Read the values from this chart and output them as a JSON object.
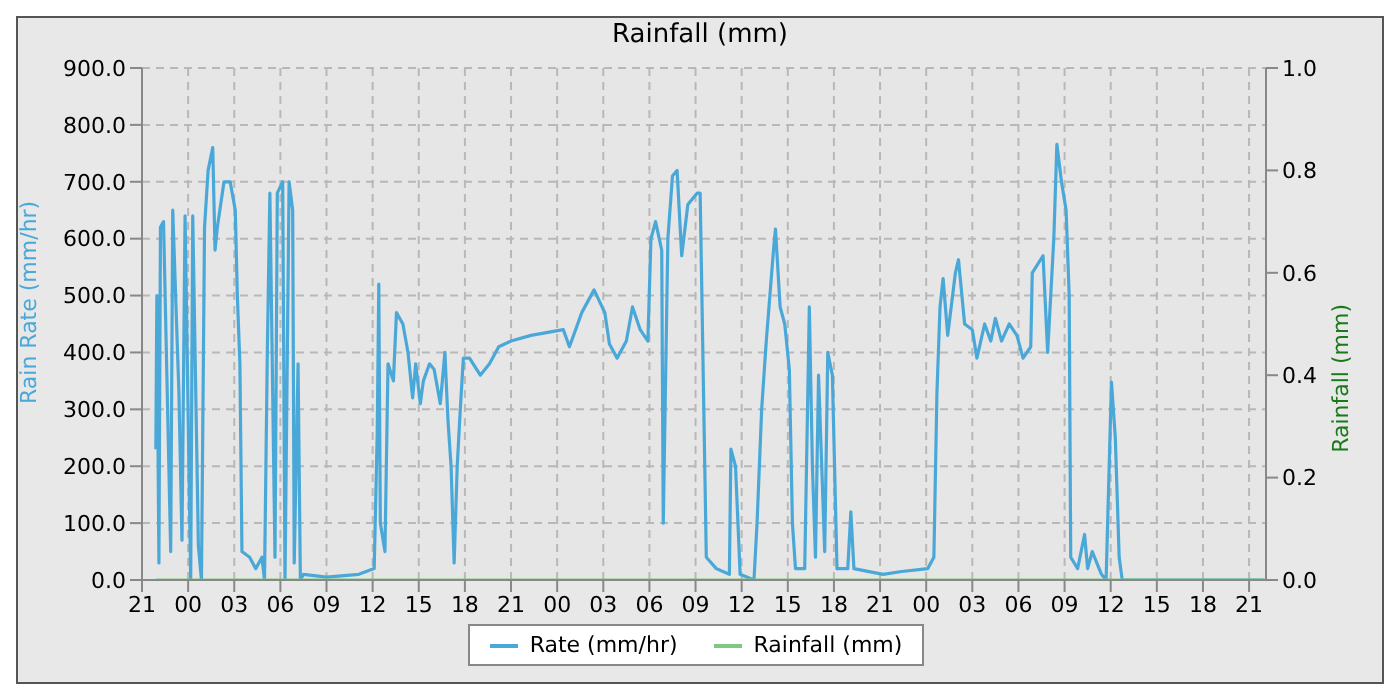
{
  "chart_data": {
    "type": "line",
    "title": "Rainfall (mm)",
    "ylabel": "Rain Rate (mm/hr)",
    "y2label": "Rainfall (mm)",
    "xlim": [
      "--01-01T21:00",
      "--01-04T22:06"
    ],
    "xticks": [
      {
        "value": "--01-01T21:00",
        "label": "21"
      },
      {
        "value": "--01-02T00:00",
        "label": "00"
      },
      {
        "value": "--01-02T03:00",
        "label": "03"
      },
      {
        "value": "--01-02T06:00",
        "label": "06"
      },
      {
        "value": "--01-02T09:00",
        "label": "09"
      },
      {
        "value": "--01-02T12:00",
        "label": "12"
      },
      {
        "value": "--01-02T15:00",
        "label": "15"
      },
      {
        "value": "--01-02T18:00",
        "label": "18"
      },
      {
        "value": "--01-02T21:00",
        "label": "21"
      },
      {
        "value": "--01-03T00:00",
        "label": "00"
      },
      {
        "value": "--01-03T03:00",
        "label": "03"
      },
      {
        "value": "--01-03T06:00",
        "label": "06"
      },
      {
        "value": "--01-03T09:00",
        "label": "09"
      },
      {
        "value": "--01-03T12:00",
        "label": "12"
      },
      {
        "value": "--01-03T15:00",
        "label": "15"
      },
      {
        "value": "--01-03T18:00",
        "label": "18"
      },
      {
        "value": "--01-03T21:00",
        "label": "21"
      },
      {
        "value": "--01-04T00:00",
        "label": "00"
      },
      {
        "value": "--01-04T03:00",
        "label": "03"
      },
      {
        "value": "--01-04T06:00",
        "label": "06"
      },
      {
        "value": "--01-04T09:00",
        "label": "09"
      },
      {
        "value": "--01-04T12:00",
        "label": "12"
      },
      {
        "value": "--01-04T15:00",
        "label": "15"
      },
      {
        "value": "--01-04T18:00",
        "label": "18"
      },
      {
        "value": "--01-04T21:00",
        "label": "21"
      }
    ],
    "ylim": [
      0,
      900
    ],
    "yticks": [
      {
        "value": 0,
        "label": "0.0"
      },
      {
        "value": 100,
        "label": "100.0"
      },
      {
        "value": 200,
        "label": "200.0"
      },
      {
        "value": 300,
        "label": "300.0"
      },
      {
        "value": 400,
        "label": "400.0"
      },
      {
        "value": 500,
        "label": "500.0"
      },
      {
        "value": 600,
        "label": "600.0"
      },
      {
        "value": 700,
        "label": "700.0"
      },
      {
        "value": 800,
        "label": "800.0"
      },
      {
        "value": 900,
        "label": "900.0"
      }
    ],
    "y2lim": [
      0,
      1
    ],
    "y2ticks": [
      {
        "value": 0,
        "label": "0.0"
      },
      {
        "value": 0.2,
        "label": "0.2"
      },
      {
        "value": 0.4,
        "label": "0.4"
      },
      {
        "value": 0.6,
        "label": "0.6"
      },
      {
        "value": 0.8,
        "label": "0.8"
      },
      {
        "value": 1,
        "label": "1.0"
      }
    ],
    "grid": true,
    "legend": "bottom",
    "series": [
      {
        "name": "Rate (mm/hr)",
        "color": "#4aa8d8",
        "x": [
          "--01-01T21:54",
          "--01-01T21:58",
          "--01-01T22:06",
          "--01-01T22:12",
          "--01-01T22:24",
          "--01-01T22:52",
          "--01-01T23:00",
          "--01-01T23:24",
          "--01-01T23:36",
          "--01-01T23:48",
          "--01-02T00:10",
          "--01-02T00:18",
          "--01-02T00:40",
          "--01-02T00:52",
          "--01-02T01:04",
          "--01-02T01:18",
          "--01-02T01:36",
          "--01-02T01:45",
          "--01-02T01:54",
          "--01-02T02:20",
          "--01-02T02:44",
          "--01-02T03:04",
          "--01-02T03:12",
          "--01-02T03:22",
          "--01-02T03:30",
          "--01-02T04:00",
          "--01-02T04:24",
          "--01-02T04:48",
          "--01-02T04:58",
          "--01-02T05:09",
          "--01-02T05:19",
          "--01-02T05:39",
          "--01-02T05:48",
          "--01-02T06:09",
          "--01-02T06:18",
          "--01-02T06:34",
          "--01-02T06:48",
          "--01-02T06:54",
          "--01-02T07:09",
          "--01-02T07:18",
          "--01-02T07:30",
          "--01-02T09:00",
          "--01-02T11:06",
          "--01-02T12:06",
          "--01-02T12:18",
          "--01-02T12:24",
          "--01-02T12:30",
          "--01-02T12:48",
          "--01-02T13:00",
          "--01-02T13:21",
          "--01-02T13:33",
          "--01-02T13:58",
          "--01-02T14:18",
          "--01-02T14:36",
          "--01-02T14:48",
          "--01-02T15:06",
          "--01-02T15:18",
          "--01-02T15:42",
          "--01-02T16:00",
          "--01-02T16:24",
          "--01-02T16:42",
          "--01-02T16:54",
          "--01-02T17:06",
          "--01-02T17:18",
          "--01-02T17:30",
          "--01-02T17:42",
          "--01-02T17:54",
          "--01-02T18:18",
          "--01-02T19:00",
          "--01-02T19:36",
          "--01-02T20:12",
          "--01-02T21:00",
          "--01-02T22:18",
          "--01-03T00:24",
          "--01-03T00:48",
          "--01-03T01:36",
          "--01-03T02:24",
          "--01-03T03:06",
          "--01-03T03:24",
          "--01-03T03:54",
          "--01-03T04:30",
          "--01-03T04:54",
          "--01-03T05:24",
          "--01-03T05:54",
          "--01-03T06:06",
          "--01-03T06:24",
          "--01-03T06:48",
          "--01-03T06:54",
          "--01-03T07:12",
          "--01-03T07:30",
          "--01-03T07:48",
          "--01-03T08:06",
          "--01-03T08:30",
          "--01-03T09:06",
          "--01-03T09:18",
          "--01-03T09:36",
          "--01-03T09:42",
          "--01-03T10:21",
          "--01-03T11:12",
          "--01-03T11:18",
          "--01-03T11:36",
          "--01-03T11:54",
          "--01-03T12:48",
          "--01-03T13:00",
          "--01-03T13:18",
          "--01-03T13:36",
          "--01-03T14:06",
          "--01-03T14:12",
          "--01-03T14:30",
          "--01-03T14:48",
          "--01-03T15:06",
          "--01-03T15:18",
          "--01-03T15:30",
          "--01-03T16:06",
          "--01-03T16:24",
          "--01-03T16:36",
          "--01-03T16:48",
          "--01-03T17:00",
          "--01-03T17:24",
          "--01-03T17:36",
          "--01-03T17:54",
          "--01-03T18:12",
          "--01-03T18:54",
          "--01-03T19:06",
          "--01-03T19:18",
          "--01-03T21:12",
          "--01-03T22:24",
          "--01-04T00:06",
          "--01-04T00:30",
          "--01-04T00:42",
          "--01-04T00:54",
          "--01-04T01:06",
          "--01-04T01:24",
          "--01-04T01:54",
          "--01-04T02:06",
          "--01-04T02:30",
          "--01-04T03:00",
          "--01-04T03:18",
          "--01-04T03:48",
          "--01-04T04:12",
          "--01-04T04:30",
          "--01-04T04:54",
          "--01-04T05:24",
          "--01-04T05:54",
          "--01-04T06:18",
          "--01-04T06:48",
          "--01-04T06:54",
          "--01-04T07:36",
          "--01-04T07:54",
          "--01-04T08:18",
          "--01-04T08:30",
          "--01-04T08:48",
          "--01-04T09:06",
          "--01-04T09:18",
          "--01-04T09:24",
          "--01-04T09:51",
          "--01-04T10:18",
          "--01-04T10:30",
          "--01-04T10:48",
          "--01-04T11:24",
          "--01-04T11:42",
          "--01-04T12:03",
          "--01-04T12:18",
          "--01-04T12:33",
          "--01-04T12:45",
          "--01-04T22:00"
        ],
        "values": [
          230,
          500,
          30,
          620,
          630,
          50,
          650,
          330,
          70,
          640,
          0,
          640,
          60,
          0,
          620,
          720,
          760,
          580,
          620,
          700,
          700,
          650,
          500,
          380,
          50,
          40,
          20,
          40,
          0,
          400,
          680,
          40,
          680,
          700,
          0,
          700,
          650,
          30,
          380,
          0,
          10,
          5,
          10,
          20,
          260,
          520,
          100,
          50,
          380,
          350,
          470,
          450,
          400,
          320,
          380,
          310,
          350,
          380,
          370,
          310,
          400,
          280,
          200,
          30,
          200,
          300,
          390,
          390,
          360,
          380,
          410,
          420,
          430,
          440,
          410,
          470,
          510,
          470,
          415,
          390,
          420,
          480,
          440,
          420,
          600,
          630,
          580,
          100,
          600,
          710,
          720,
          570,
          660,
          680,
          680,
          200,
          40,
          20,
          10,
          230,
          200,
          10,
          0,
          100,
          300,
          420,
          590,
          617,
          480,
          450,
          370,
          100,
          20,
          20,
          480,
          200,
          40,
          360,
          50,
          400,
          360,
          20,
          20,
          120,
          20,
          10,
          15,
          20,
          40,
          330,
          480,
          530,
          430,
          540,
          563,
          450,
          440,
          390,
          450,
          420,
          460,
          420,
          450,
          430,
          390,
          410,
          540,
          570,
          400,
          600,
          766,
          700,
          650,
          500,
          40,
          20,
          80,
          20,
          50,
          10,
          0,
          348,
          250,
          40,
          0,
          0
        ]
      },
      {
        "name": "Rainfall (mm)",
        "type": "line",
        "axis": "y2",
        "color": "#7fc97f",
        "x": [
          "--01-01T21:54",
          "--01-04T22:00"
        ],
        "values": [
          0,
          0
        ]
      }
    ]
  }
}
